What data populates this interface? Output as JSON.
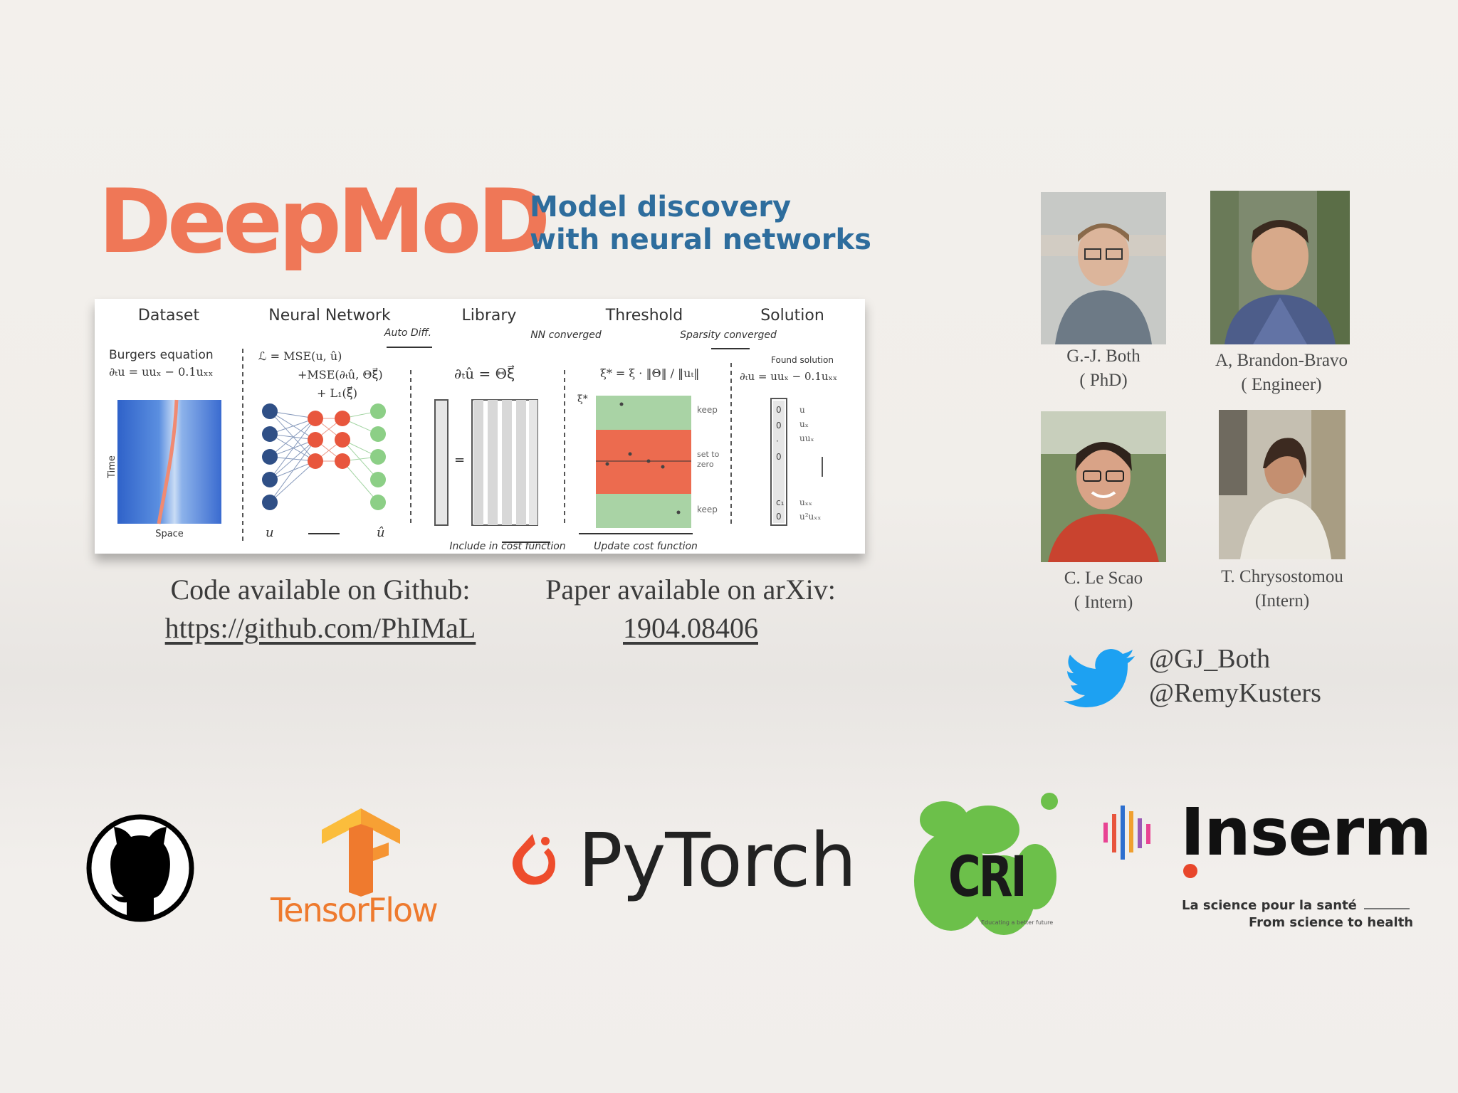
{
  "title": {
    "logo": "DeepMoD",
    "subtitle_line1": "Model discovery",
    "subtitle_line2": "with neural networks",
    "logo_color": "#ef7757",
    "subtitle_color": "#2e6d9d"
  },
  "figure": {
    "headers": [
      "Dataset",
      "Neural Network",
      "Library",
      "Threshold",
      "Solution"
    ],
    "arrow_labels": [
      "Auto Diff.",
      "NN converged",
      "Sparsity converged"
    ],
    "dataset_label": "Burgers equation",
    "dataset_eq": "∂ₜu = uuₓ − 0.1uₓₓ",
    "axis_time": "Time",
    "axis_space": "Space",
    "loss_line1": "ℒ = MSE(u, û)",
    "loss_line2": "+MSE(∂ₜû, Θξ⃗)",
    "loss_line3": "+ L₁(ξ⃗)",
    "input_symbol": "u",
    "output_symbol": "û",
    "library_eq": "∂ₜû = Θξ⃗",
    "threshold_eq": "ξ* = ξ · ‖Θ‖ / ‖uₜ‖",
    "threshold_symbol": "ξ*",
    "keep_label": "keep",
    "zero_label_1": "set to",
    "zero_label_2": "zero",
    "found_label": "Found solution",
    "solution_eq": "∂ₜu = uuₓ − 0.1uₓₓ",
    "solution_terms": [
      "u",
      "uₓ",
      "uuₓ",
      "uₓₓ",
      "u²uₓₓ"
    ],
    "include_label": "Include in cost function",
    "update_label": "Update cost function"
  },
  "links": {
    "github_label": "Code available on Github:",
    "github_url": "https://github.com/PhIMaL",
    "arxiv_label": "Paper available on arXiv:",
    "arxiv_id": "1904.08406"
  },
  "people": [
    {
      "name": "G.-J. Both",
      "role": "( PhD)"
    },
    {
      "name": "A, Brandon-Bravo",
      "role": "( Engineer)"
    },
    {
      "name": "C. Le Scao",
      "role": "( Intern)"
    },
    {
      "name": "T. Chrysostomou",
      "role": "(Intern)"
    }
  ],
  "twitter": {
    "handle1": "@GJ_Both",
    "handle2": "@RemyKusters",
    "icon": "twitter-bird-icon",
    "color": "#1da1f2"
  },
  "logos": {
    "github_icon": "github-octocat-icon",
    "tensorflow": "TensorFlow",
    "pytorch": "PyTorch",
    "cri": "CRI",
    "cri_tag": "Educating a better future",
    "inserm": "Inserm",
    "inserm_tag1": "La science pour la santé",
    "inserm_tag2": "From science to health"
  }
}
